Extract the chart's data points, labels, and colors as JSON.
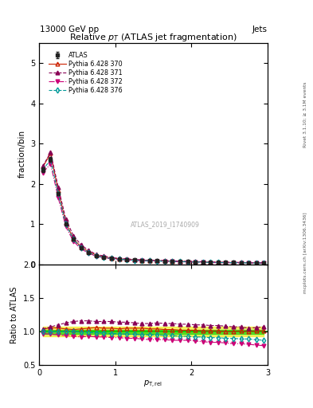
{
  "title": "Relative $p_{T}$ (ATLAS jet fragmentation)",
  "header_left": "13000 GeV pp",
  "header_right": "Jets",
  "ylabel_main": "fraction/bin",
  "ylabel_ratio": "Ratio to ATLAS",
  "watermark": "ATLAS_2019_I1740909",
  "right_label": "mcplots.cern.ch [arXiv:1306.3436]",
  "right_label2": "Rivet 3.1.10; ≥ 3.1M events",
  "xlim": [
    0,
    3
  ],
  "ylim_main": [
    0,
    5.5
  ],
  "ylim_ratio": [
    0.5,
    2.0
  ],
  "x_data": [
    0.05,
    0.15,
    0.25,
    0.35,
    0.45,
    0.55,
    0.65,
    0.75,
    0.85,
    0.95,
    1.05,
    1.15,
    1.25,
    1.35,
    1.45,
    1.55,
    1.65,
    1.75,
    1.85,
    1.95,
    2.05,
    2.15,
    2.25,
    2.35,
    2.45,
    2.55,
    2.65,
    2.75,
    2.85,
    2.95
  ],
  "atlas_y": [
    2.35,
    2.6,
    1.75,
    1.0,
    0.62,
    0.42,
    0.3,
    0.22,
    0.18,
    0.15,
    0.13,
    0.12,
    0.11,
    0.1,
    0.095,
    0.09,
    0.085,
    0.08,
    0.075,
    0.07,
    0.065,
    0.06,
    0.055,
    0.052,
    0.05,
    0.048,
    0.046,
    0.044,
    0.042,
    0.04
  ],
  "atlas_err": [
    0.05,
    0.06,
    0.04,
    0.02,
    0.015,
    0.01,
    0.008,
    0.006,
    0.005,
    0.004,
    0.004,
    0.003,
    0.003,
    0.003,
    0.003,
    0.003,
    0.003,
    0.002,
    0.002,
    0.002,
    0.002,
    0.002,
    0.002,
    0.002,
    0.002,
    0.002,
    0.002,
    0.002,
    0.002,
    0.002
  ],
  "py370_ratio": [
    1.03,
    1.06,
    1.05,
    1.04,
    1.03,
    1.04,
    1.05,
    1.06,
    1.05,
    1.05,
    1.04,
    1.05,
    1.05,
    1.05,
    1.04,
    1.04,
    1.03,
    1.03,
    1.02,
    1.02,
    1.02,
    1.01,
    1.01,
    1.01,
    1.0,
    1.0,
    1.01,
    1.0,
    1.01,
    1.01
  ],
  "py371_ratio": [
    1.04,
    1.07,
    1.1,
    1.13,
    1.15,
    1.16,
    1.16,
    1.15,
    1.15,
    1.15,
    1.14,
    1.14,
    1.13,
    1.12,
    1.12,
    1.13,
    1.12,
    1.12,
    1.11,
    1.11,
    1.1,
    1.1,
    1.09,
    1.09,
    1.08,
    1.07,
    1.07,
    1.05,
    1.06,
    1.07
  ],
  "py372_ratio": [
    0.97,
    0.96,
    0.95,
    0.94,
    0.93,
    0.92,
    0.93,
    0.92,
    0.92,
    0.91,
    0.91,
    0.9,
    0.9,
    0.89,
    0.88,
    0.88,
    0.88,
    0.87,
    0.87,
    0.87,
    0.86,
    0.85,
    0.84,
    0.84,
    0.83,
    0.82,
    0.82,
    0.81,
    0.8,
    0.79
  ],
  "py376_ratio": [
    1.0,
    1.0,
    1.0,
    1.0,
    1.0,
    0.99,
    0.99,
    0.98,
    0.98,
    0.97,
    0.97,
    0.96,
    0.96,
    0.95,
    0.95,
    0.95,
    0.94,
    0.94,
    0.93,
    0.93,
    0.92,
    0.92,
    0.91,
    0.91,
    0.9,
    0.9,
    0.89,
    0.89,
    0.88,
    0.87
  ],
  "colors": {
    "atlas": "#222222",
    "py370": "#cc2200",
    "py371": "#880055",
    "py372": "#cc0077",
    "py376": "#009999",
    "green_band": "#00cc00",
    "yellow_band": "#eeee00"
  },
  "legend_entries": [
    "ATLAS",
    "Pythia 6.428 370",
    "Pythia 6.428 371",
    "Pythia 6.428 372",
    "Pythia 6.428 376"
  ]
}
